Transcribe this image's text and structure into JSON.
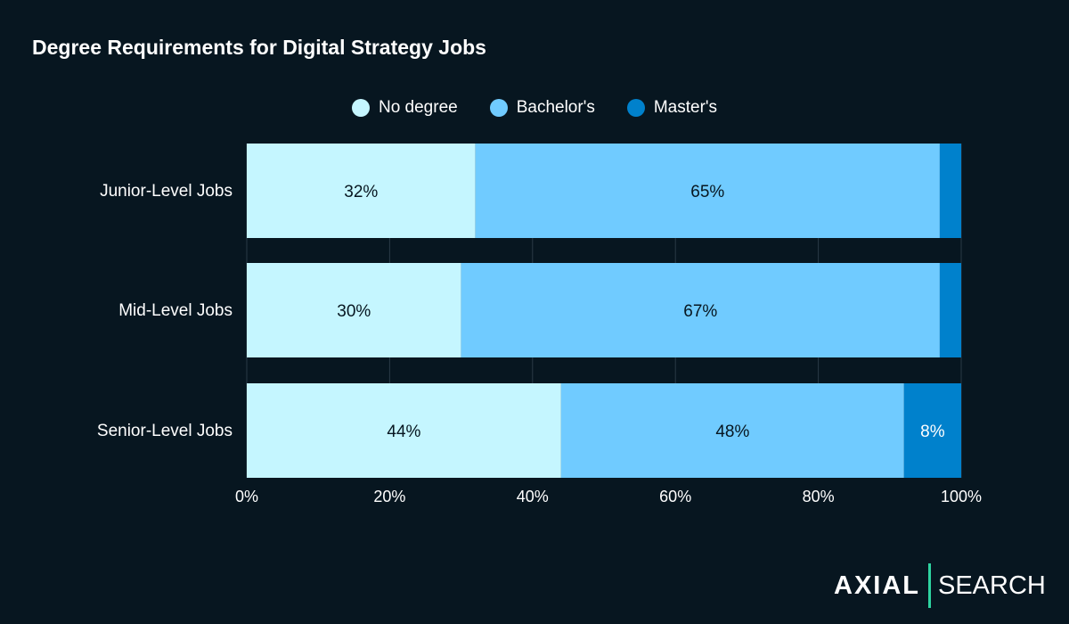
{
  "chart_data": {
    "type": "bar",
    "orientation": "horizontal",
    "stacked": true,
    "title": "Degree Requirements for Digital Strategy Jobs",
    "categories": [
      "Junior-Level Jobs",
      "Mid-Level Jobs",
      "Senior-Level Jobs"
    ],
    "series": [
      {
        "name": "No degree",
        "color": "#c5f6ff",
        "values": [
          32,
          30,
          44
        ],
        "labels": [
          "32%",
          "30%",
          "44%"
        ]
      },
      {
        "name": "Bachelor's",
        "color": "#70cbff",
        "values": [
          65,
          67,
          48
        ],
        "labels": [
          "65%",
          "67%",
          "48%"
        ]
      },
      {
        "name": "Master's",
        "color": "#0081cc",
        "values": [
          3,
          3,
          8
        ],
        "labels": [
          "",
          "",
          "8%"
        ]
      }
    ],
    "xlim": [
      0,
      100
    ],
    "xticks": [
      "0%",
      "20%",
      "40%",
      "60%",
      "80%",
      "100%"
    ],
    "grid": true,
    "legend": "top-center"
  },
  "logo": {
    "left": "AXIAL",
    "right": "SEARCH"
  }
}
